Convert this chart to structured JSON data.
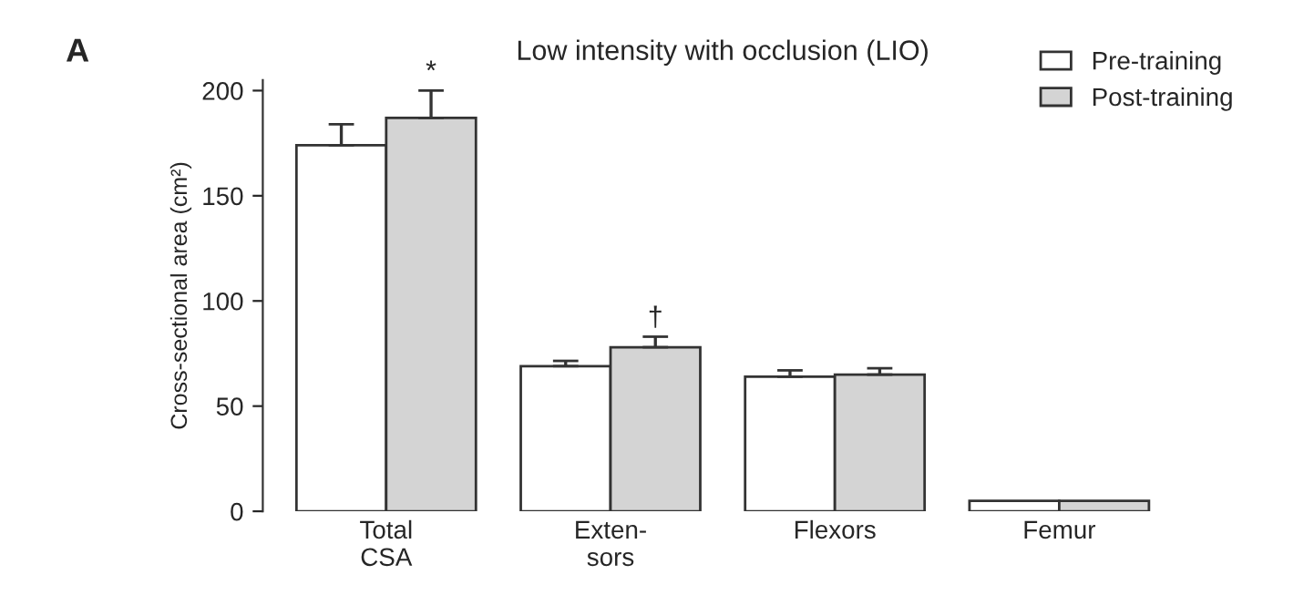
{
  "chart_data": {
    "type": "bar",
    "title": "Low intensity with occlusion (LIO)",
    "ylabel": "Cross-sectional area (cm²)",
    "categories": [
      "Total\nCSA",
      "Exten-\nsors",
      "Flexors",
      "Femur"
    ],
    "series": [
      {
        "name": "Pre-training",
        "color": "#ffffff",
        "values": [
          174,
          69,
          64,
          5
        ],
        "errors": [
          10,
          2.5,
          3,
          null
        ]
      },
      {
        "name": "Post-training",
        "color": "#d4d4d4",
        "values": [
          187,
          78,
          65,
          5
        ],
        "errors": [
          13,
          5,
          3,
          null
        ]
      }
    ],
    "ylim": [
      0,
      205
    ],
    "yticks": [
      0,
      50,
      100,
      150,
      200
    ],
    "grid": false,
    "legend": "top right",
    "annotations": [
      "A",
      "*",
      "†"
    ]
  }
}
